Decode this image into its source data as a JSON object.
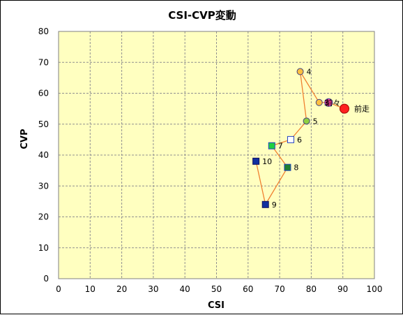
{
  "chart_data": {
    "type": "scatter",
    "title": "CSI-CVP変動",
    "xlabel": "CSI",
    "ylabel": "CVP",
    "xlim": [
      0,
      100
    ],
    "ylim": [
      0,
      80
    ],
    "x_ticks": [
      "0",
      "10",
      "20",
      "30",
      "40",
      "50",
      "60",
      "70",
      "80",
      "90",
      "100"
    ],
    "y_ticks": [
      "0",
      "10",
      "20",
      "30",
      "40",
      "50",
      "60",
      "70",
      "80"
    ],
    "grid": "dashed",
    "plot_background": "#ffffc0",
    "line_color": "#f08030",
    "points": [
      {
        "label": "前走",
        "x": 90.5,
        "y": 55,
        "marker": "circle",
        "fill": "#ff2020",
        "stroke": "#a00000",
        "size": "large"
      },
      {
        "label": "前々",
        "x": 85.5,
        "y": 57,
        "marker": "circle",
        "fill": "#ff40a0",
        "stroke": "#4040a0",
        "size": "medium"
      },
      {
        "label": "3",
        "x": 82.5,
        "y": 57,
        "marker": "circle",
        "fill": "#ffc040",
        "stroke": "#404080",
        "size": "small"
      },
      {
        "label": "4",
        "x": 76.5,
        "y": 67,
        "marker": "circle",
        "fill": "#ffc040",
        "stroke": "#404080",
        "size": "small"
      },
      {
        "label": "5",
        "x": 78.5,
        "y": 51,
        "marker": "circle",
        "fill": "#90d040",
        "stroke": "#404080",
        "size": "small"
      },
      {
        "label": "6",
        "x": 73.5,
        "y": 45,
        "marker": "square",
        "fill": "#ffffff",
        "stroke": "#2040c0",
        "size": "small"
      },
      {
        "label": "7",
        "x": 67.5,
        "y": 43,
        "marker": "square",
        "fill": "#20d040",
        "stroke": "#2040c0",
        "size": "small"
      },
      {
        "label": "8",
        "x": 72.5,
        "y": 36,
        "marker": "square",
        "fill": "#208030",
        "stroke": "#2040c0",
        "size": "small"
      },
      {
        "label": "9",
        "x": 65.5,
        "y": 24,
        "marker": "square",
        "fill": "#1030a0",
        "stroke": "#101060",
        "size": "small"
      },
      {
        "label": "10",
        "x": 62.5,
        "y": 38,
        "marker": "square",
        "fill": "#1030a0",
        "stroke": "#101060",
        "size": "small"
      }
    ]
  }
}
